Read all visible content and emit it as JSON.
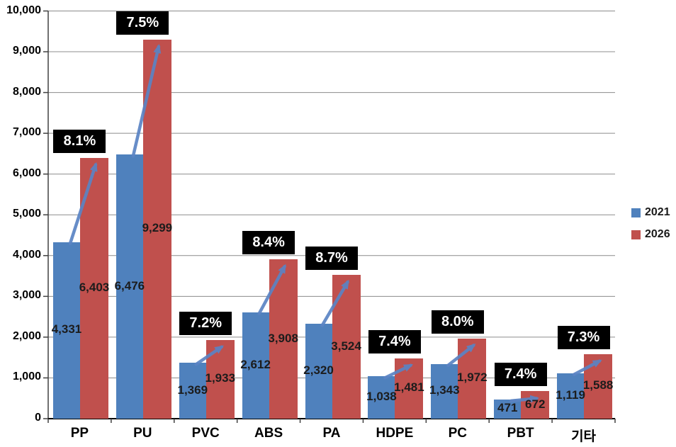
{
  "chart_data": {
    "type": "bar",
    "title": "",
    "xlabel": "",
    "ylabel": "",
    "categories": [
      "PP",
      "PU",
      "PVC",
      "ABS",
      "PA",
      "HDPE",
      "PC",
      "PBT",
      "기타"
    ],
    "series": [
      {
        "name": "2021",
        "color": "#4F81BD",
        "values": [
          4331,
          6476,
          1369,
          2612,
          2320,
          1038,
          1343,
          471,
          1119
        ],
        "value_labels": [
          "4,331",
          "6,476",
          "1,369",
          "2,612",
          "2,320",
          "1,038",
          "1,343",
          "471",
          "1,119"
        ]
      },
      {
        "name": "2026",
        "color": "#C0504D",
        "values": [
          6403,
          9299,
          1933,
          3908,
          3524,
          1481,
          1972,
          672,
          1588
        ],
        "value_labels": [
          "6,403",
          "9,299",
          "1,933",
          "3,908",
          "3,524",
          "1,481",
          "1,972",
          "672",
          "1,588"
        ]
      }
    ],
    "growth_labels": [
      "8.1%",
      "7.5%",
      "7.2%",
      "8.4%",
      "8.7%",
      "7.4%",
      "8.0%",
      "7.4%",
      "7.3%"
    ],
    "growth_badge_bg": "#000000",
    "growth_badge_fg": "#ffffff",
    "arrow_color": "#5B84C4",
    "value_label_color": "#1c1c1c",
    "gridline_color": "#8C8C8C",
    "axis_color": "#404040",
    "baseline_color": "#000000",
    "y_axis": {
      "min": 0,
      "max": 10000,
      "step": 1000,
      "tick_labels": [
        "0",
        "1,000",
        "2,000",
        "3,000",
        "4,000",
        "5,000",
        "6,000",
        "7,000",
        "8,000",
        "9,000",
        "10,000"
      ]
    },
    "legend": {
      "position": "right",
      "entries": [
        {
          "label": "2021",
          "color": "#4F81BD"
        },
        {
          "label": "2026",
          "color": "#C0504D"
        }
      ]
    },
    "grid": true
  }
}
